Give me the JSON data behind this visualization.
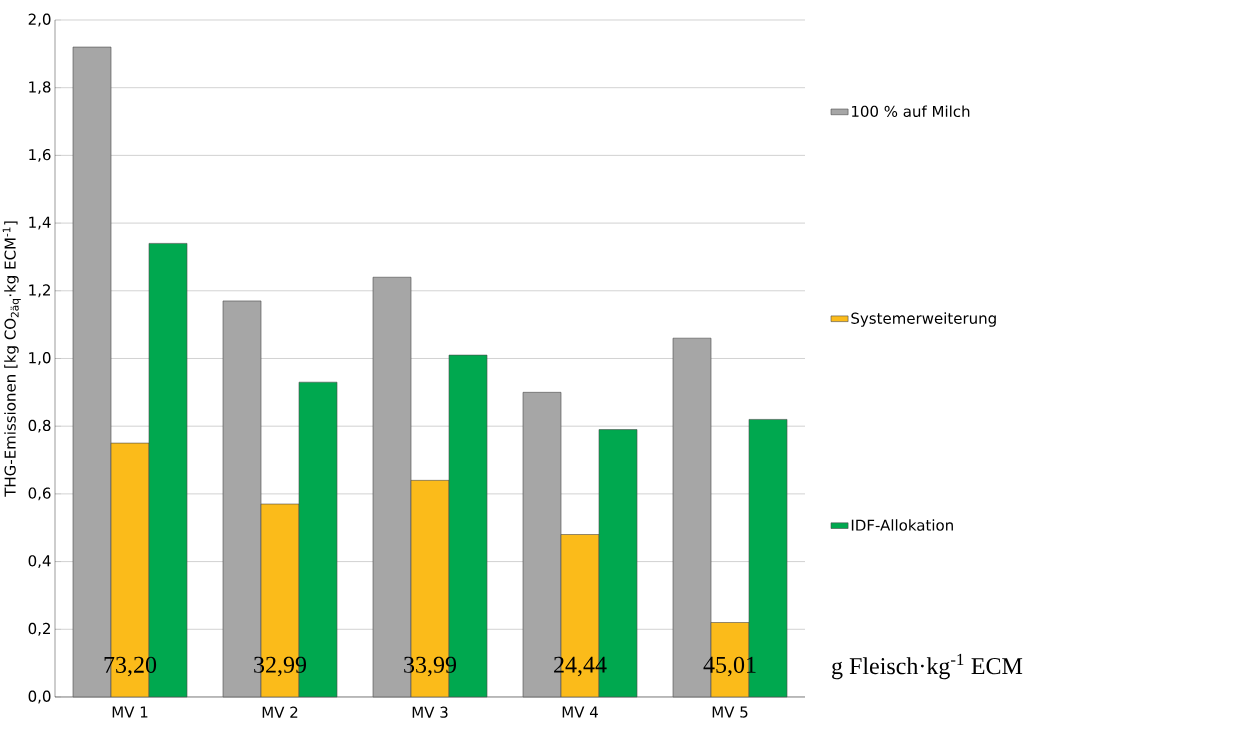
{
  "chart_data": {
    "type": "bar",
    "categories": [
      "MV 1",
      "MV 2",
      "MV 3",
      "MV 4",
      "MV 5"
    ],
    "ylabel": "THG-Emissionen [kg CO$_{2äq}$·kg ECM$^{-1}$]",
    "series": [
      {
        "name": "100 % auf Milch",
        "color": "#a6a6a6",
        "values": [
          1.92,
          1.17,
          1.24,
          0.9,
          1.06
        ]
      },
      {
        "name": "Systemerweiterung",
        "color": "#fbbb1a",
        "values": [
          0.75,
          0.57,
          0.64,
          0.48,
          0.22
        ]
      },
      {
        "name": "IDF-Allokation",
        "color": "#00a84f",
        "values": [
          1.34,
          0.93,
          1.01,
          0.79,
          0.82
        ]
      }
    ],
    "ylim": [
      0,
      2.0
    ],
    "yticks": [
      {
        "value": 0,
        "label": "0,0"
      },
      {
        "value": 0.2,
        "label": "0,2"
      },
      {
        "value": 0.4,
        "label": "0,4"
      },
      {
        "value": 0.6,
        "label": "0,6"
      },
      {
        "value": 0.8,
        "label": "0,8"
      },
      {
        "value": 1.0,
        "label": "1,0"
      },
      {
        "value": 1.2,
        "label": "1,2"
      },
      {
        "value": 1.4,
        "label": "1,4"
      },
      {
        "value": 1.6,
        "label": "1,6"
      },
      {
        "value": 1.8,
        "label": "1,8"
      },
      {
        "value": 2.0,
        "label": "2,0"
      }
    ],
    "grid": "y",
    "legend": "right",
    "annotations": [
      "73,20",
      "32,99",
      "33,99",
      "24,44",
      "45,01",
      "g Fleisch·kg$^{-1}$ ECM"
    ]
  }
}
